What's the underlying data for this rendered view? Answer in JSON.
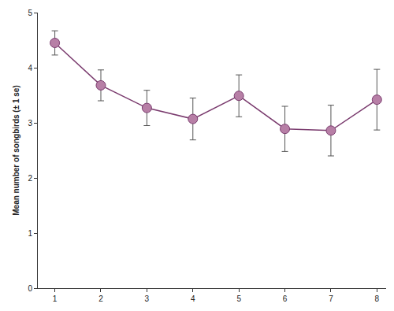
{
  "chart_data": {
    "type": "line",
    "y_label": "Mean number of songbirds (± 1 se)",
    "x": [
      1,
      2,
      3,
      4,
      5,
      6,
      7,
      8
    ],
    "values": [
      4.45,
      3.68,
      3.27,
      3.07,
      3.49,
      2.89,
      2.86,
      3.42
    ],
    "errors": [
      0.22,
      0.28,
      0.32,
      0.38,
      0.38,
      0.41,
      0.46,
      0.55
    ],
    "color": "#7a3b6e",
    "marker": "circle",
    "line_style": "solid",
    "xlim": [
      0.63,
      8.2
    ],
    "xticks": [
      1,
      2,
      3,
      4,
      5,
      6,
      7,
      8
    ],
    "ylim": [
      0,
      5
    ],
    "yticks": [
      0,
      1,
      2,
      3,
      4,
      5
    ],
    "grid": false
  }
}
